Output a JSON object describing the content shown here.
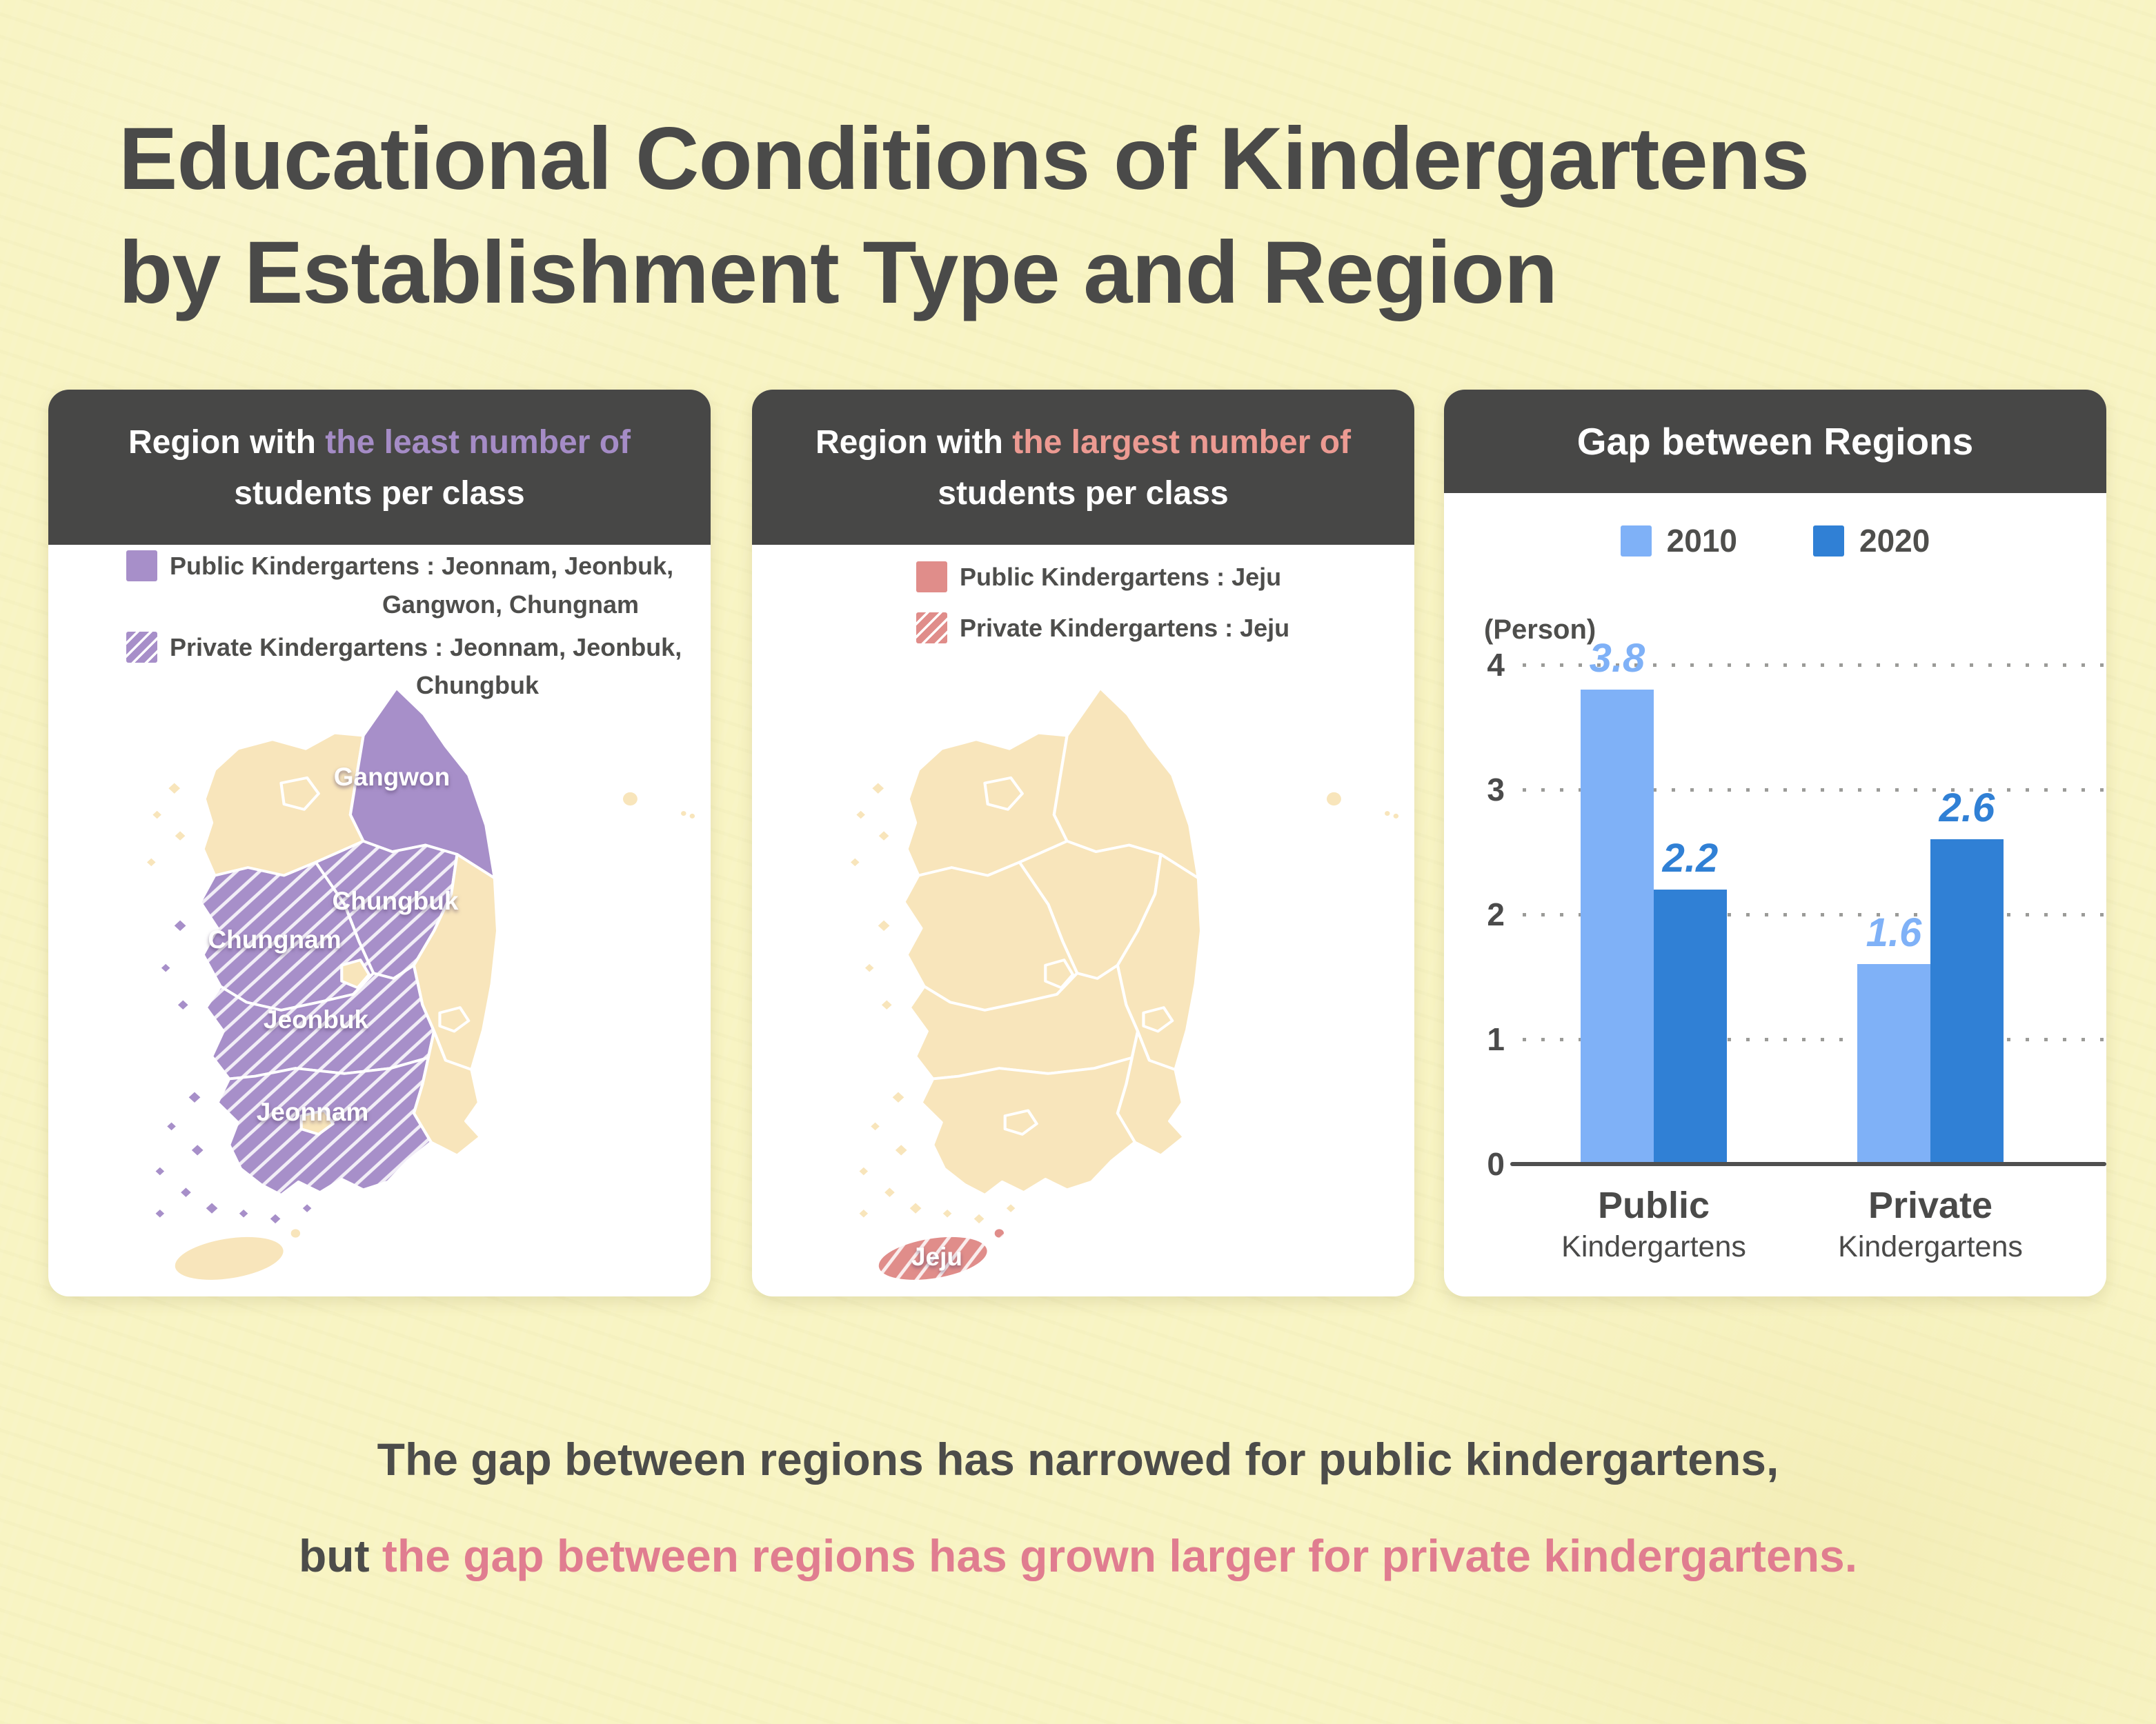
{
  "title": {
    "line1": "Educational Conditions of Kindergartens",
    "line2": "by Establishment Type and Region"
  },
  "panel1": {
    "header_prefix": "Region with ",
    "header_highlight": "the least number of",
    "header_line2": "students per class",
    "legend": [
      {
        "swatch": "purple-solid",
        "line1": "Public Kindergartens : Jeonnam, Jeonbuk,",
        "line2": "Gangwon, Chungnam"
      },
      {
        "swatch": "purple-hatch",
        "line1": "Private Kindergartens : Jeonnam, Jeonbuk,",
        "line2": "Chungbuk"
      }
    ],
    "map_labels": {
      "gangwon": "Gangwon",
      "chungbuk": "Chungbuk",
      "chungnam": "Chungnam",
      "jeonbuk": "Jeonbuk",
      "jeonnam": "Jeonnam"
    }
  },
  "panel2": {
    "header_prefix": "Region with ",
    "header_highlight": "the largest number of",
    "header_line2": "students per class",
    "legend": [
      {
        "swatch": "pink-solid",
        "line1": "Public Kindergartens : Jeju"
      },
      {
        "swatch": "pink-hatch",
        "line1": "Private Kindergartens : Jeju"
      }
    ],
    "map_labels": {
      "jeju": "Jeju"
    }
  },
  "panel3": {
    "header": "Gap between Regions",
    "y_axis_label": "(Person)"
  },
  "chart_data": {
    "type": "bar",
    "title": "Gap between Regions",
    "categories": [
      "Public Kindergartens",
      "Private Kindergartens"
    ],
    "series": [
      {
        "name": "2010",
        "values": [
          3.8,
          1.6
        ],
        "color": "#7fb1f7"
      },
      {
        "name": "2020",
        "values": [
          2.2,
          2.6
        ],
        "color": "#3080d5"
      }
    ],
    "xlabel": "",
    "ylabel": "(Person)",
    "ylim": [
      0,
      4
    ],
    "yticks": [
      0,
      1,
      2,
      3,
      4
    ],
    "grid": "dotted-horizontal",
    "legend_position": "top"
  },
  "caption": {
    "line1": "The gap between regions has narrowed for public kindergartens,",
    "line2_prefix": "but ",
    "line2_highlight": "the gap between regions has grown larger for private kindergartens."
  },
  "colors": {
    "background": "#f8f4c3",
    "panel_header": "#474746",
    "text_dark": "#4a4a49",
    "accent_purple": "#a58cc6",
    "accent_salmon": "#ec9a92",
    "caption_rose": "#e07d90",
    "map_purple": "#a78fc9",
    "map_pink": "#e08d8a",
    "map_beige": "#f8e5bb",
    "bar_2010": "#7fb1f7",
    "bar_2020": "#3080d5"
  }
}
